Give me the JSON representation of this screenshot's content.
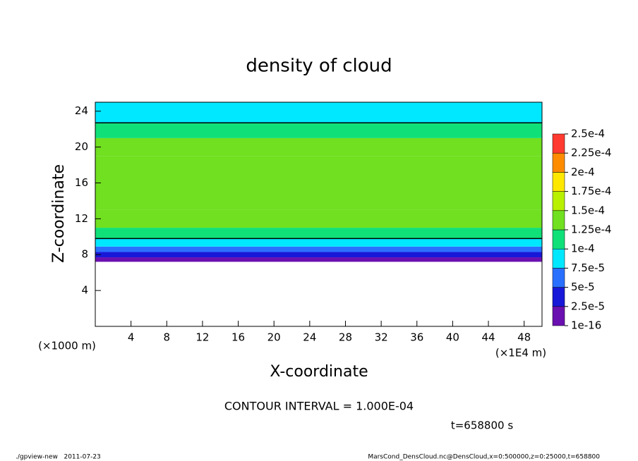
{
  "chart_data": {
    "type": "contour",
    "title": "density of cloud",
    "xlabel": "X-coordinate",
    "ylabel": "Z-coordinate",
    "x_unit_label": "(×1E4 m)",
    "y_unit_label": "(×1000 m)",
    "xlim": [
      0,
      50
    ],
    "xticks": [
      4,
      8,
      12,
      16,
      20,
      24,
      28,
      32,
      36,
      40,
      44,
      48
    ],
    "ylim": [
      0,
      25
    ],
    "yticks": [
      4,
      8,
      12,
      16,
      20,
      24
    ],
    "z": [
      7.2,
      7.7,
      8.3,
      8.9,
      9.8,
      11,
      13,
      19,
      21,
      22.7,
      25
    ],
    "values": [
      1.5e-05,
      3.5e-05,
      6e-05,
      8.8e-05,
      0.00011,
      0.00013,
      0.00014,
      0.00013,
      0.000115,
      9.8e-05
    ],
    "levels": [
      {
        "value": 1e-16,
        "label": "1e-16"
      },
      {
        "value": 2.5e-05,
        "label": "2.5e-5"
      },
      {
        "value": 5e-05,
        "label": "5e-5"
      },
      {
        "value": 7.5e-05,
        "label": "7.5e-5"
      },
      {
        "value": 0.0001,
        "label": "1e-4"
      },
      {
        "value": 0.000125,
        "label": "1.25e-4"
      },
      {
        "value": 0.00015,
        "label": "1.5e-4"
      },
      {
        "value": 0.000175,
        "label": "1.75e-4"
      },
      {
        "value": 0.0002,
        "label": "2e-4"
      },
      {
        "value": 0.000225,
        "label": "2.25e-4"
      },
      {
        "value": 0.00025,
        "label": "2.5e-4"
      }
    ],
    "colors": [
      "#6a10b0",
      "#1818d8",
      "#2a70ff",
      "#00e8ff",
      "#10e078",
      "#70e020",
      "#b8f000",
      "#ffe800",
      "#ff8c00",
      "#ff3a30"
    ],
    "contour_interval": {
      "value": 0.0001,
      "label": "CONTOUR INTERVAL = 1.000E-04"
    },
    "time_label": "t=658800 s",
    "footer_left": "./gpview-new   2011-07-23",
    "footer_right": "MarsCond_DensCloud.nc@DensCloud,x=0:500000,z=0:25000,t=658800"
  }
}
